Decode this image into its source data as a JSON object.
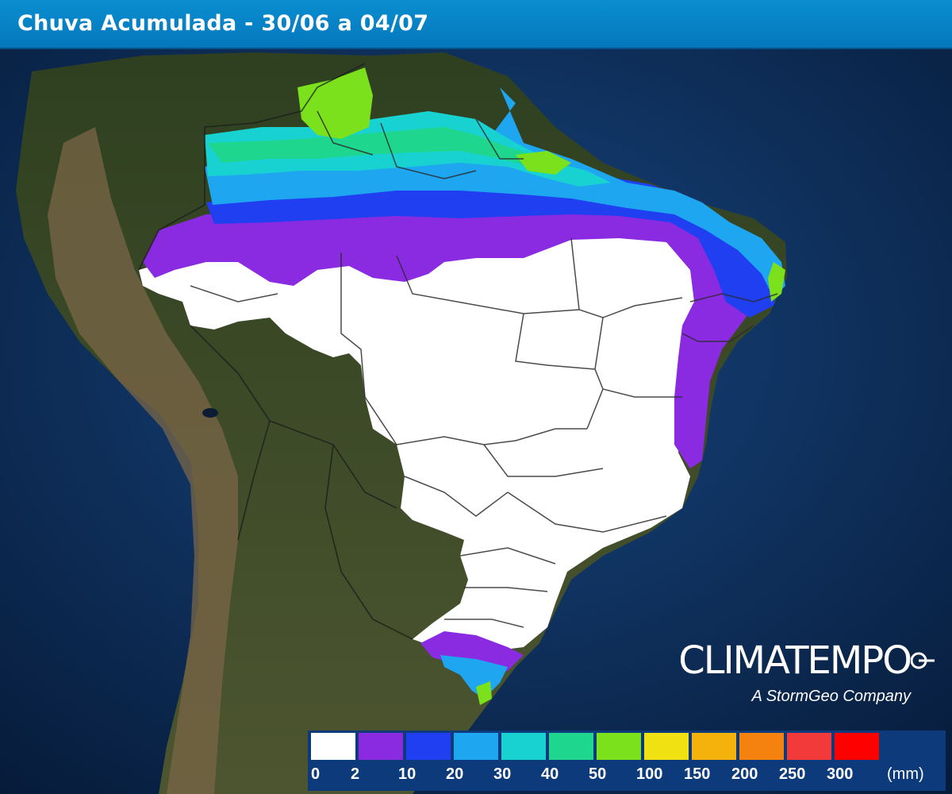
{
  "header": {
    "title": "Chuva Acumulada - 30/06 a 04/07"
  },
  "brand": {
    "name": "CLIMATEMPO",
    "tagline": "A StormGeo Company"
  },
  "legend": {
    "unit": "(mm)",
    "items": [
      {
        "label": "0",
        "color": "#ffffff"
      },
      {
        "label": "2",
        "color": "#8a2be2"
      },
      {
        "label": "10",
        "color": "#1f3ff0"
      },
      {
        "label": "20",
        "color": "#1ea6f0"
      },
      {
        "label": "30",
        "color": "#18d2d2"
      },
      {
        "label": "40",
        "color": "#1ed68e"
      },
      {
        "label": "50",
        "color": "#7ae11c"
      },
      {
        "label": "100",
        "color": "#f0e212"
      },
      {
        "label": "150",
        "color": "#f5b10c"
      },
      {
        "label": "200",
        "color": "#f5820e"
      },
      {
        "label": "250",
        "color": "#f23a3a"
      },
      {
        "label": "300",
        "color": "#ff0000"
      }
    ]
  },
  "map_colors": {
    "ocean": "#0b2a55",
    "land": "#3a4a26",
    "mountains": "#7a6647",
    "no_rain": "#ffffff",
    "borders": "#2b2b2b"
  }
}
